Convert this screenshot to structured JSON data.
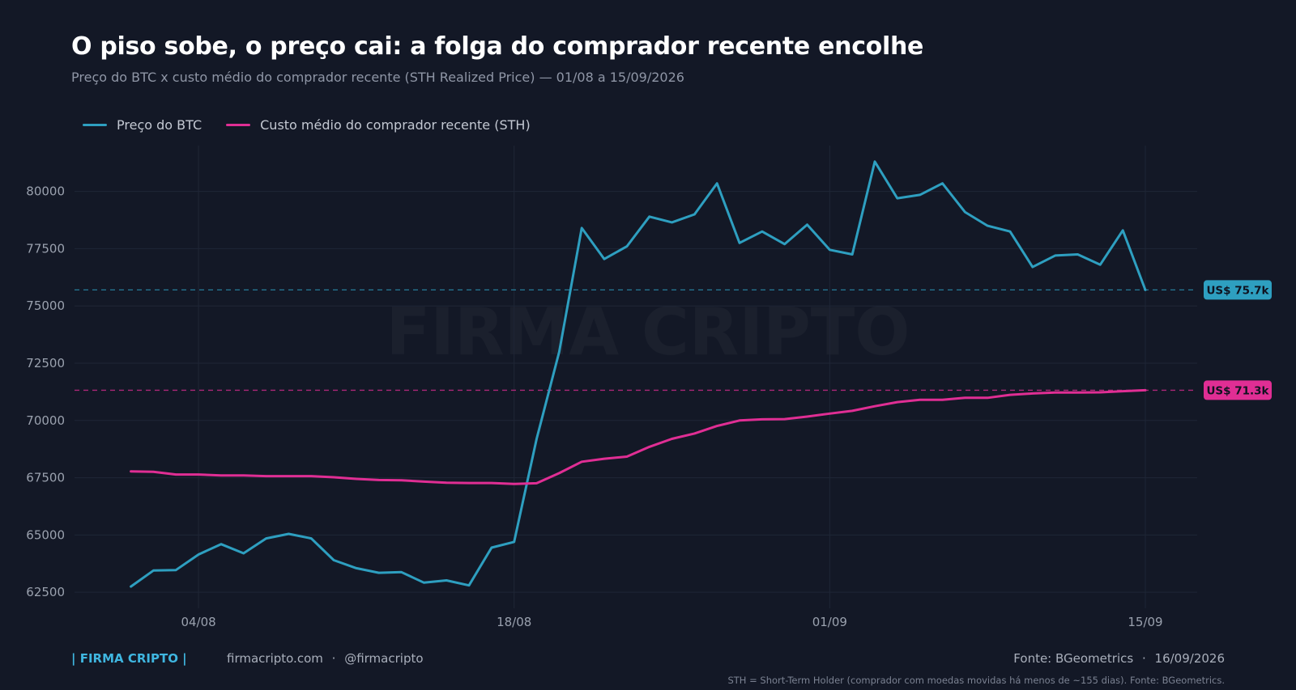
{
  "header": {
    "title": "O piso sobe, o preço cai: a folga do comprador recente encolhe",
    "subtitle": "Preço do BTC x custo médio do comprador recente (STH Realized Price) — 01/08 a 15/09/2026"
  },
  "watermark": "FIRMA CRIPTO",
  "footer": {
    "brand": "| FIRMA CRIPTO |",
    "site": "firmacripto.com",
    "separator": "·",
    "handle": "@firmacripto",
    "source": "Fonte: BGeometrics",
    "date": "16/09/2026",
    "footnote": "STH = Short-Term Holder (comprador com moedas movidas há menos de ~155 dias). Fonte: BGeometrics."
  },
  "chart_data": {
    "type": "line",
    "title": "O piso sobe, o preço cai: a folga do comprador recente encolhe",
    "ylim": [
      61800,
      82000
    ],
    "yticks": [
      62500,
      65000,
      67500,
      70000,
      72500,
      75000,
      77500,
      80000
    ],
    "xticks": [
      {
        "label": "04/08",
        "x": 4
      },
      {
        "label": "18/08",
        "x": 18
      },
      {
        "label": "01/09",
        "x": 32
      },
      {
        "label": "15/09",
        "x": 46
      }
    ],
    "xlim": [
      -1.5,
      48.3
    ],
    "grid": true,
    "legend_position": "top-left",
    "x": [
      1,
      2,
      3,
      4,
      5,
      6,
      7,
      8,
      9,
      10,
      11,
      12,
      13,
      14,
      15,
      16,
      17,
      18,
      19,
      20,
      21,
      22,
      23,
      24,
      25,
      26,
      27,
      28,
      29,
      30,
      31,
      32,
      33,
      34,
      35,
      36,
      37,
      38,
      39,
      40,
      41,
      42,
      43,
      44,
      45,
      46
    ],
    "series": [
      {
        "name": "Preço do BTC",
        "color": "#2e9fc0",
        "last_label": "US$ 75.7k",
        "values": [
          62750,
          63450,
          63470,
          64150,
          64600,
          64200,
          64850,
          65050,
          64850,
          63900,
          63550,
          63350,
          63380,
          62920,
          63020,
          62800,
          64450,
          64700,
          69200,
          73000,
          78400,
          77050,
          77600,
          78900,
          78650,
          79000,
          80350,
          77750,
          78250,
          77700,
          78550,
          77450,
          77250,
          81300,
          79700,
          79850,
          80350,
          79100,
          78500,
          78250,
          76700,
          77200,
          77250,
          76800,
          78300,
          75700
        ]
      },
      {
        "name": "Custo médio do comprador recente (STH)",
        "color": "#e02e94",
        "last_label": "US$ 71.3k",
        "values": [
          67780,
          67760,
          67640,
          67640,
          67600,
          67600,
          67570,
          67570,
          67570,
          67520,
          67450,
          67400,
          67390,
          67330,
          67280,
          67270,
          67270,
          67230,
          67260,
          67700,
          68200,
          68330,
          68420,
          68850,
          69200,
          69430,
          69760,
          70000,
          70050,
          70060,
          70170,
          70300,
          70420,
          70620,
          70800,
          70900,
          70900,
          70990,
          70990,
          71120,
          71180,
          71220,
          71220,
          71230,
          71280,
          71320
        ]
      }
    ]
  }
}
